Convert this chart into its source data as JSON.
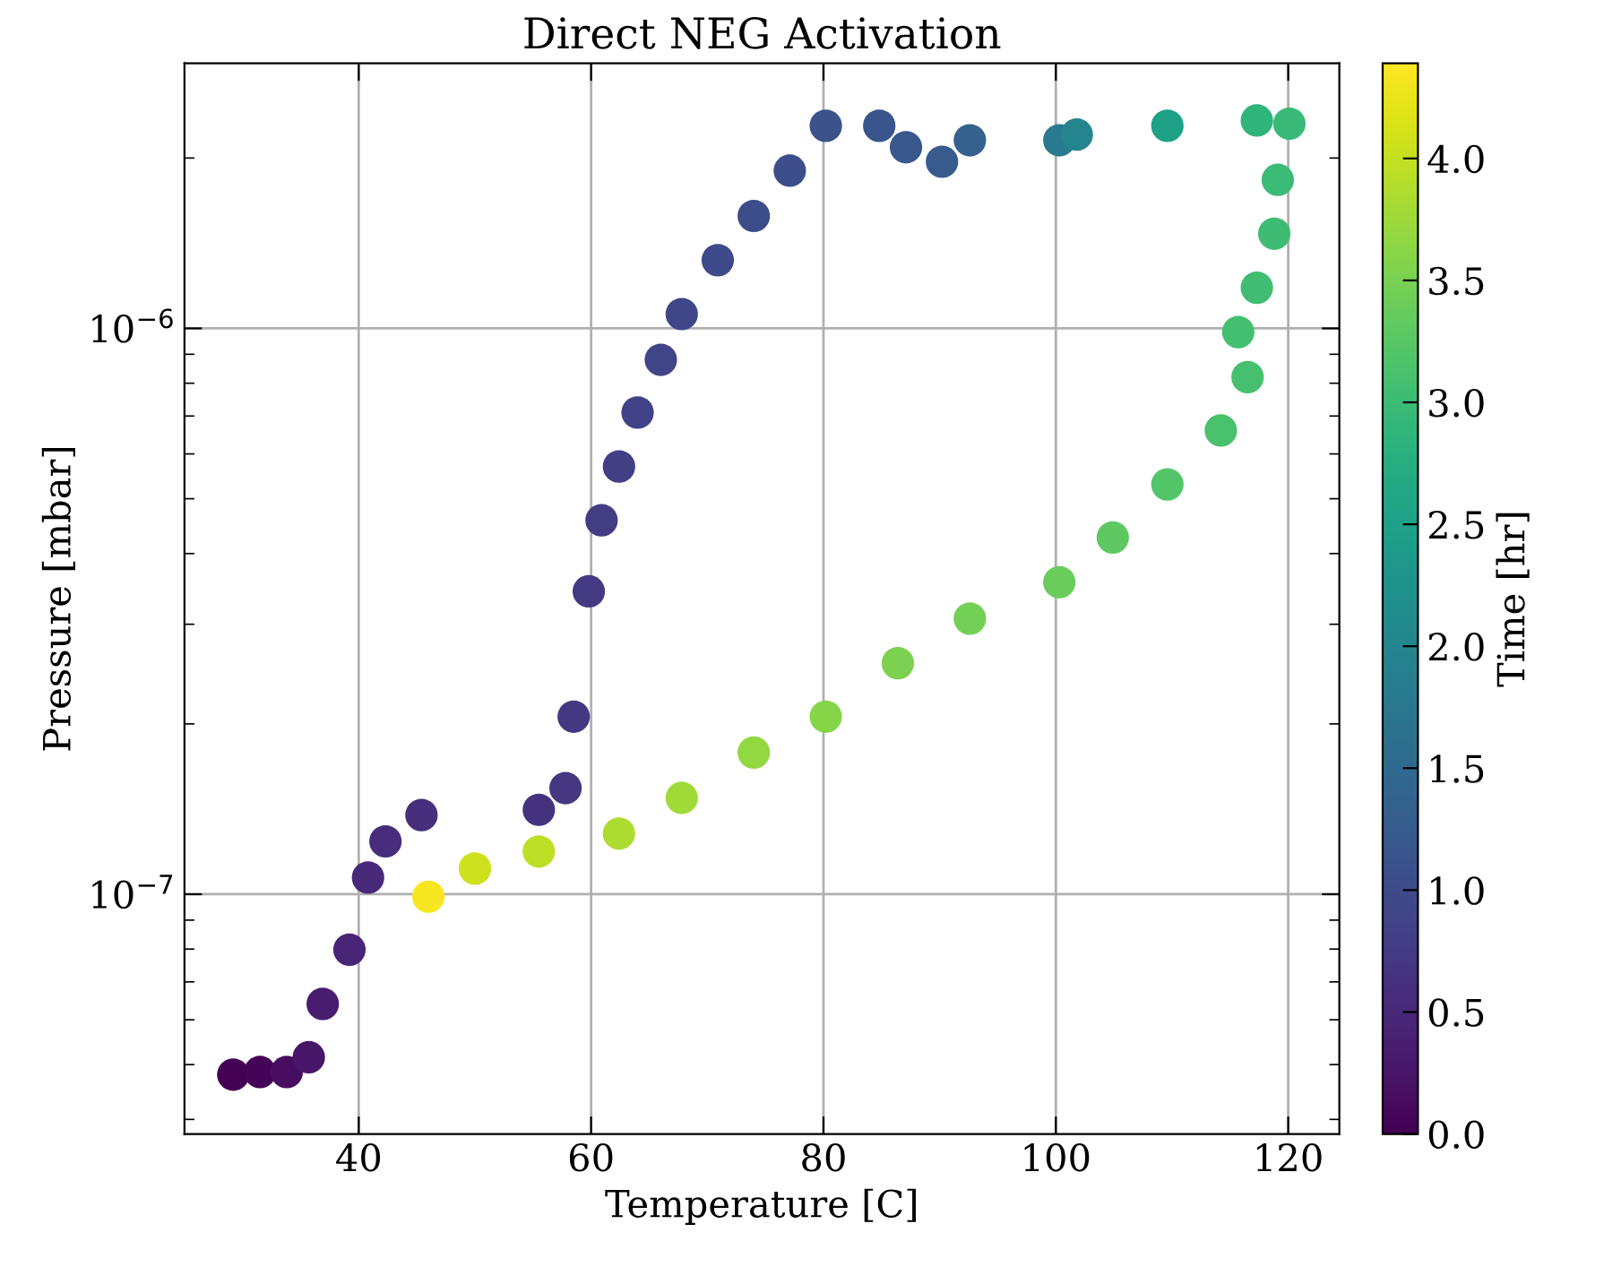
{
  "chart_data": {
    "type": "scatter",
    "title": "Direct NEG Activation",
    "xlabel": "Temperature [C]",
    "ylabel": "Pressure [mbar]",
    "clabel": "Time [hr]",
    "x": [
      29.2,
      31.5,
      33.8,
      35.7,
      36.9,
      39.2,
      40.8,
      42.3,
      45.4,
      55.5,
      57.8,
      58.5,
      59.8,
      60.9,
      62.4,
      64.0,
      66.0,
      67.8,
      70.9,
      74.0,
      77.1,
      80.2,
      84.8,
      87.1,
      90.2,
      92.6,
      100.3,
      101.8,
      109.6,
      117.3,
      120.1,
      119.1,
      118.8,
      117.3,
      115.7,
      116.5,
      114.2,
      109.6,
      104.9,
      100.3,
      92.6,
      86.4,
      80.2,
      74.0,
      67.8,
      62.4,
      55.5,
      50.0,
      46.0
    ],
    "values": [
      4.8e-08,
      4.85e-08,
      4.85e-08,
      5.15e-08,
      6.4e-08,
      7.98e-08,
      1.07e-07,
      1.24e-07,
      1.38e-07,
      1.41e-07,
      1.54e-07,
      2.06e-07,
      3.43e-07,
      4.58e-07,
      5.7e-07,
      7.1e-07,
      8.8e-07,
      1.06e-06,
      1.32e-06,
      1.58e-06,
      1.9e-06,
      2.28e-06,
      2.28e-06,
      2.09e-06,
      1.97e-06,
      2.15e-06,
      2.15e-06,
      2.2e-06,
      2.28e-06,
      2.33e-06,
      2.3e-06,
      1.83e-06,
      1.47e-06,
      1.18e-06,
      9.85e-07,
      8.2e-07,
      6.6e-07,
      5.3e-07,
      4.27e-07,
      3.56e-07,
      3.07e-07,
      2.56e-07,
      2.06e-07,
      1.78e-07,
      1.48e-07,
      1.28e-07,
      1.19e-07,
      1.11e-07,
      9.9e-08
    ],
    "cvalues": [
      0,
      0.05,
      0.15,
      0.25,
      0.35,
      0.45,
      0.5,
      0.55,
      0.6,
      0.65,
      0.7,
      0.72,
      0.75,
      0.78,
      0.82,
      0.86,
      0.9,
      0.94,
      0.98,
      1.02,
      1.06,
      1.1,
      1.15,
      1.2,
      1.25,
      1.35,
      1.8,
      2.0,
      2.5,
      2.85,
      2.95,
      3.0,
      3.03,
      3.05,
      3.07,
      3.1,
      3.13,
      3.2,
      3.3,
      3.38,
      3.45,
      3.52,
      3.6,
      3.68,
      3.76,
      3.85,
      3.95,
      4.05,
      4.35
    ],
    "log": "y",
    "xlim": [
      25,
      124.4
    ],
    "ylim": [
      3.77e-08,
      2.94e-06
    ],
    "xticks": [
      40,
      60,
      80,
      100,
      120
    ],
    "yticks": [
      {
        "value": 1e-07,
        "label": "10$^{−7}$"
      },
      {
        "value": 1e-06,
        "label": "10$^{−6}$"
      }
    ],
    "clim": [
      0,
      4.39
    ],
    "cticks": [
      {
        "value": 0,
        "label": "0.0"
      },
      {
        "value": 0.5,
        "label": "0.5"
      },
      {
        "value": 1,
        "label": "1.0"
      },
      {
        "value": 1.5,
        "label": "1.5"
      },
      {
        "value": 2,
        "label": "2.0"
      },
      {
        "value": 2.5,
        "label": "2.5"
      },
      {
        "value": 3,
        "label": "3.0"
      },
      {
        "value": 3.5,
        "label": "3.5"
      },
      {
        "value": 4,
        "label": "4.0"
      }
    ],
    "grid": true,
    "marker": "circle"
  }
}
